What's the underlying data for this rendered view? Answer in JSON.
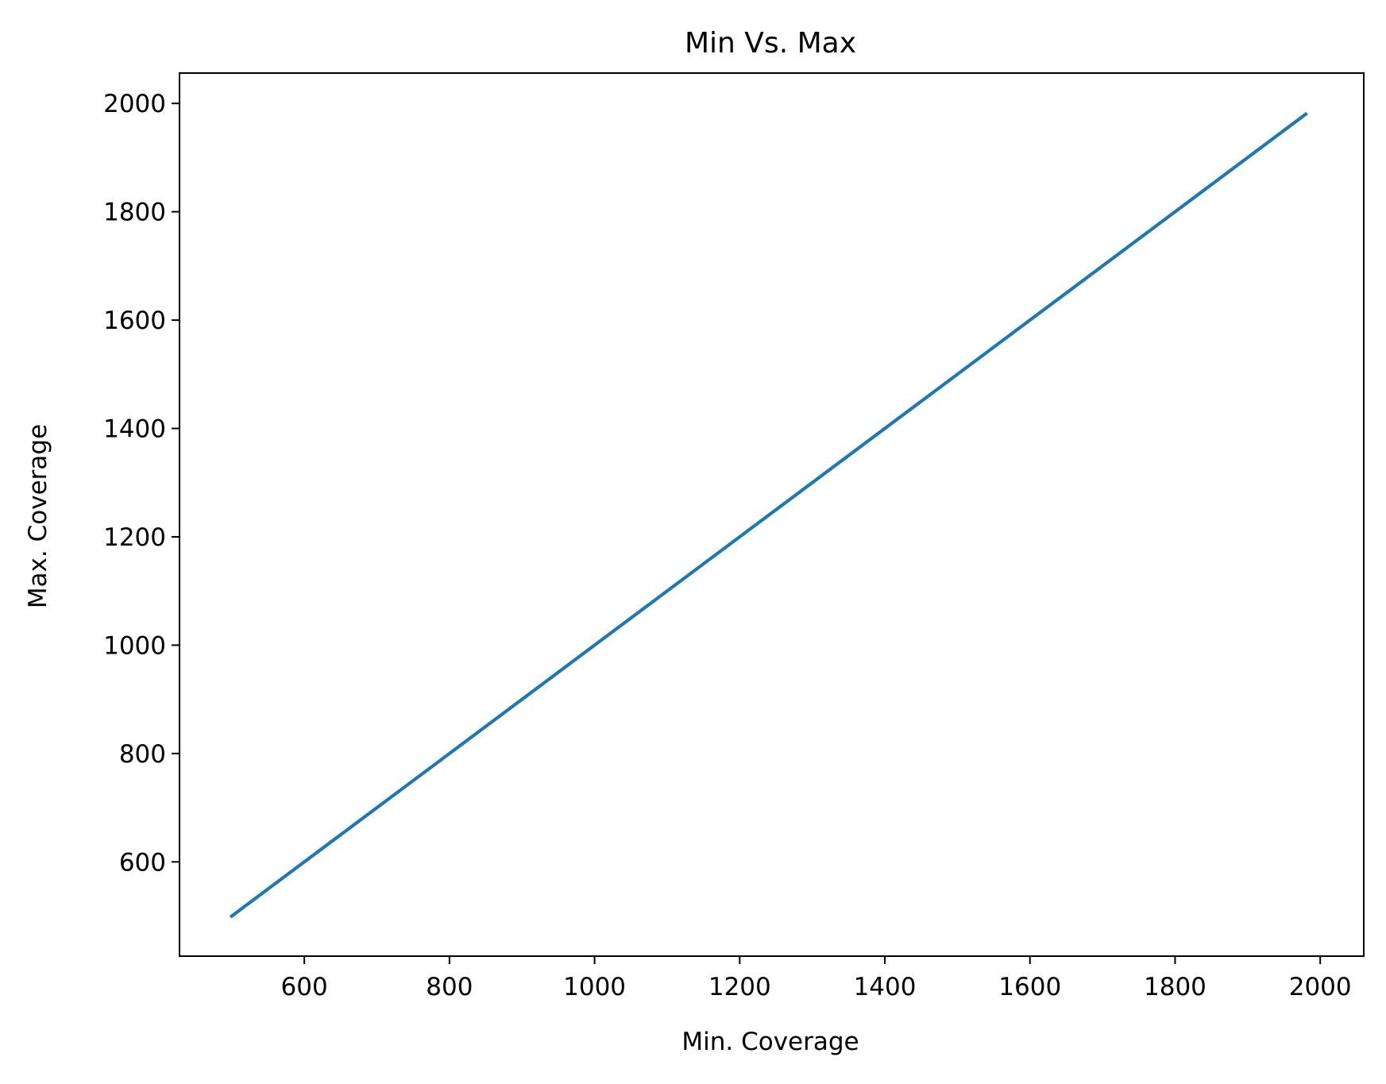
{
  "chart_data": {
    "type": "line",
    "title": "Min Vs. Max",
    "xlabel": "Min. Coverage",
    "ylabel": "Max. Coverage",
    "xlim": [
      428,
      2060
    ],
    "ylim": [
      426,
      2056
    ],
    "xticks": [
      600,
      800,
      1000,
      1200,
      1400,
      1600,
      1800,
      2000
    ],
    "yticks": [
      600,
      800,
      1000,
      1200,
      1400,
      1600,
      1800,
      2000
    ],
    "xtick_labels": [
      "600",
      "800",
      "1000",
      "1200",
      "1400",
      "1600",
      "1800",
      "2000"
    ],
    "ytick_labels": [
      "600",
      "800",
      "1000",
      "1200",
      "1400",
      "1600",
      "1800",
      "2000"
    ],
    "grid": false,
    "series": [
      {
        "color": "#1f77b4",
        "x": [
          500,
          1980
        ],
        "y": [
          500,
          1980
        ]
      }
    ]
  }
}
